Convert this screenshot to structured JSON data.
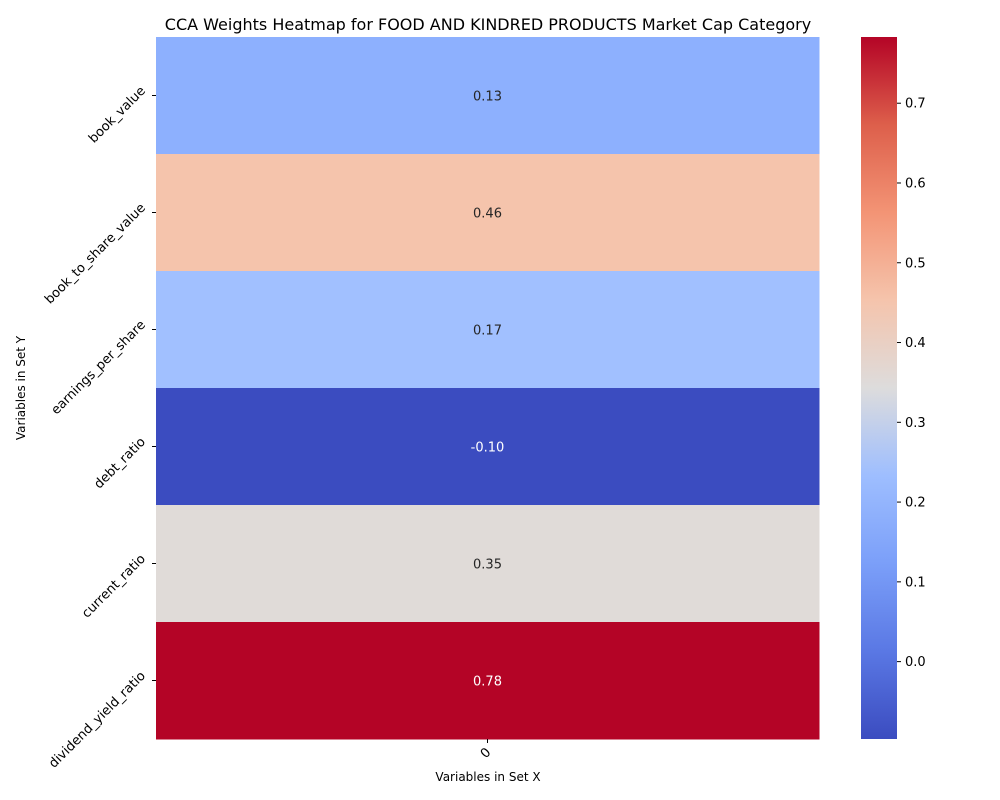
{
  "chart_data": {
    "type": "heatmap",
    "title": "CCA Weights Heatmap for FOOD AND KINDRED PRODUCTS Market Cap Category",
    "xlabel": "Variables in Set X",
    "ylabel": "Variables in Set Y",
    "x_categories": [
      "0"
    ],
    "y_categories": [
      "book_value",
      "book_to_share_value",
      "earnings_per_share",
      "debt_ratio",
      "current_ratio",
      "dividend_yield_ratio"
    ],
    "values": [
      [
        0.13
      ],
      [
        0.46
      ],
      [
        0.17
      ],
      [
        -0.1
      ],
      [
        0.35
      ],
      [
        0.78
      ]
    ],
    "value_labels": [
      "0.13",
      "0.46",
      "0.17",
      "-0.10",
      "0.35",
      "0.78"
    ],
    "colormap": "coolwarm",
    "colorbar": {
      "min": -0.097,
      "max": 0.783,
      "ticks": [
        0.0,
        0.1,
        0.2,
        0.3,
        0.4,
        0.5,
        0.6,
        0.7
      ],
      "tick_labels": [
        "0.0",
        "0.1",
        "0.2",
        "0.3",
        "0.4",
        "0.5",
        "0.6",
        "0.7"
      ]
    },
    "cell_colors": [
      "#8db0fe",
      "#f5c4ac",
      "#a1c0ff",
      "#3b4cc0",
      "#e0dbd8",
      "#b40426"
    ],
    "annotation_colors": [
      "#262626",
      "#262626",
      "#262626",
      "#ffffff",
      "#262626",
      "#ffffff"
    ]
  }
}
